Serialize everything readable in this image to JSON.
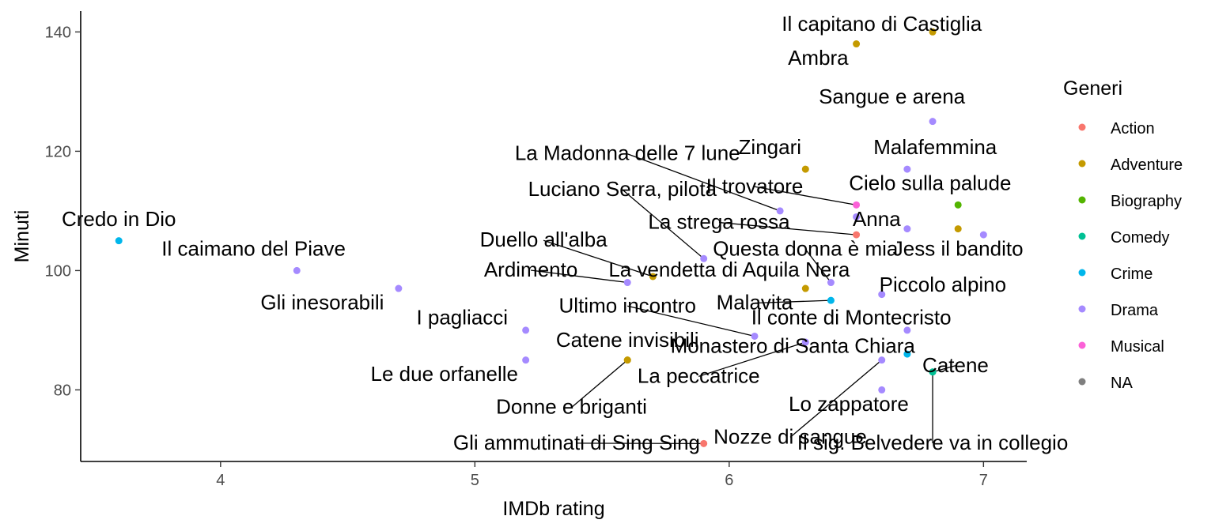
{
  "chart_data": {
    "type": "scatter",
    "xlabel": "IMDb rating",
    "ylabel": "Minuti",
    "xlim": [
      3.45,
      7.17
    ],
    "ylim": [
      68,
      143.5
    ],
    "x_ticks": [
      4,
      5,
      6,
      7
    ],
    "y_ticks": [
      80,
      100,
      120,
      140
    ],
    "grid": false,
    "legend": {
      "title": "Generi",
      "position": "right",
      "entries": [
        {
          "name": "Action",
          "color": "#F8766D"
        },
        {
          "name": "Adventure",
          "color": "#C49A00"
        },
        {
          "name": "Biography",
          "color": "#53B400"
        },
        {
          "name": "Comedy",
          "color": "#00C094"
        },
        {
          "name": "Crime",
          "color": "#00B6EB"
        },
        {
          "name": "Drama",
          "color": "#A58AFF"
        },
        {
          "name": "Musical",
          "color": "#FB61D7"
        },
        {
          "name": "NA",
          "color": "#7F7F7F"
        }
      ]
    },
    "points": [
      {
        "label": "Credo in Dio",
        "x": 3.6,
        "y": 105,
        "genre": "Crime",
        "lx": 3.6,
        "ly": 107.5,
        "leader": false
      },
      {
        "label": "Il caimano del Piave",
        "x": 4.3,
        "y": 100,
        "genre": "Drama",
        "lx": 4.13,
        "ly": 102.5,
        "leader": false
      },
      {
        "label": "Gli inesorabili",
        "x": 4.7,
        "y": 97,
        "genre": "Drama",
        "lx": 4.4,
        "ly": 93.5,
        "leader": false
      },
      {
        "label": "I pagliacci",
        "x": 5.2,
        "y": 90,
        "genre": "Drama",
        "lx": 4.95,
        "ly": 91,
        "leader": false
      },
      {
        "label": "Le due orfanelle",
        "x": 5.2,
        "y": 85,
        "genre": "Drama",
        "lx": 4.88,
        "ly": 81.5,
        "leader": false
      },
      {
        "label": "Catene invisibili",
        "x": 5.6,
        "y": 85,
        "genre": "Adventure",
        "lx": 5.6,
        "ly": 87.2,
        "leader": false
      },
      {
        "label": "Donne e briganti",
        "x": 5.6,
        "y": 85,
        "genre": "Adventure",
        "lx": 5.38,
        "ly": 76,
        "leader": true
      },
      {
        "label": "Duello all'alba",
        "x": 5.7,
        "y": 99,
        "genre": "Adventure",
        "lx": 5.27,
        "ly": 104,
        "leader": true
      },
      {
        "label": "Ardimento",
        "x": 5.6,
        "y": 98,
        "genre": "Drama",
        "lx": 5.22,
        "ly": 99,
        "leader": true
      },
      {
        "label": "La vendetta di Aquila Nera",
        "x": 6.3,
        "y": 97,
        "genre": "Adventure",
        "lx": 6.0,
        "ly": 99,
        "leader": false
      },
      {
        "label": "Ultimo incontro",
        "x": 6.1,
        "y": 89,
        "genre": "Drama",
        "lx": 5.6,
        "ly": 93,
        "leader": true
      },
      {
        "label": "La Madonna delle 7 lune",
        "x": 6.2,
        "y": 110,
        "genre": "Drama",
        "lx": 5.6,
        "ly": 118.5,
        "leader": true
      },
      {
        "label": "Luciano Serra, pilota",
        "x": 5.9,
        "y": 102,
        "genre": "Drama",
        "lx": 5.58,
        "ly": 112.5,
        "leader": true
      },
      {
        "label": "Zingari",
        "x": 6.3,
        "y": 117,
        "genre": "Adventure",
        "lx": 6.16,
        "ly": 119.5,
        "leader": false
      },
      {
        "label": "Il trovatore",
        "x": 6.5,
        "y": 111,
        "genre": "Musical",
        "lx": 6.1,
        "ly": 113,
        "leader": true
      },
      {
        "label": "La strega rossa",
        "x": 6.5,
        "y": 106,
        "genre": "Action",
        "lx": 5.96,
        "ly": 107,
        "leader": true
      },
      {
        "label": "Questa donna è mia",
        "x": 6.4,
        "y": 98,
        "genre": "Drama",
        "lx": 6.3,
        "ly": 102.5,
        "leader": true
      },
      {
        "label": "Malavita",
        "x": 6.4,
        "y": 95,
        "genre": "Crime",
        "lx": 6.1,
        "ly": 93.5,
        "leader": true
      },
      {
        "label": "Monastero di Santa Chiara",
        "x": 6.3,
        "y": 88,
        "genre": "Drama",
        "lx": 6.25,
        "ly": 86.2,
        "leader": false
      },
      {
        "label": "La peccatrice",
        "x": 6.3,
        "y": 88,
        "genre": "Drama",
        "lx": 5.88,
        "ly": 81.2,
        "leader": true
      },
      {
        "label": "Il capitano di Castiglia",
        "x": 6.8,
        "y": 140,
        "genre": "Adventure",
        "lx": 6.6,
        "ly": 140.2,
        "leader": false
      },
      {
        "label": "Ambra",
        "x": 6.5,
        "y": 138,
        "genre": "Adventure",
        "lx": 6.35,
        "ly": 134.5,
        "leader": false
      },
      {
        "label": "Sangue e arena",
        "x": 6.8,
        "y": 125,
        "genre": "Drama",
        "lx": 6.64,
        "ly": 128,
        "leader": false
      },
      {
        "label": "Malafemmina",
        "x": 6.7,
        "y": 117,
        "genre": "Drama",
        "lx": 6.81,
        "ly": 119.5,
        "leader": false
      },
      {
        "label": "Cielo sulla palude",
        "x": 6.9,
        "y": 111,
        "genre": "Biography",
        "lx": 6.79,
        "ly": 113.5,
        "leader": false
      },
      {
        "label": "Anna",
        "x": 6.5,
        "y": 109,
        "genre": "Drama",
        "lx": 6.58,
        "ly": 107.5,
        "leader": false
      },
      {
        "label": "Jess il bandito",
        "x": 6.7,
        "y": 107,
        "genre": "Drama",
        "lx": 6.9,
        "ly": 102.5,
        "leader": false
      },
      {
        "label": "Piccolo alpino",
        "x": 6.6,
        "y": 96,
        "genre": "Drama",
        "lx": 6.84,
        "ly": 96.5,
        "leader": false
      },
      {
        "label": "Il conte di Montecristo",
        "x": 6.7,
        "y": 90,
        "genre": "Drama",
        "lx": 6.48,
        "ly": 91,
        "leader": false
      },
      {
        "label": "Catene",
        "x": 6.8,
        "y": 83,
        "genre": "Comedy",
        "lx": 6.89,
        "ly": 83,
        "leader": true
      },
      {
        "label": "Lo zappatore",
        "x": 6.6,
        "y": 80,
        "genre": "Drama",
        "lx": 6.47,
        "ly": 76.5,
        "leader": false
      },
      {
        "label": "Nozze di sangue",
        "x": 6.6,
        "y": 85,
        "genre": "Drama",
        "lx": 6.24,
        "ly": 71,
        "leader": true
      },
      {
        "label": "Gli ammutinati di Sing Sing",
        "x": 5.9,
        "y": 71,
        "genre": "Action",
        "lx": 5.4,
        "ly": 70,
        "leader": true
      },
      {
        "label": "Il sig. Belvedere va in collegio",
        "x": 6.8,
        "y": 83,
        "genre": "Comedy",
        "lx": 6.8,
        "ly": 70,
        "leader": true
      },
      {
        "label": "",
        "x": 6.9,
        "y": 107,
        "genre": "Adventure"
      },
      {
        "label": "",
        "x": 7.0,
        "y": 106,
        "genre": "Drama"
      },
      {
        "label": "",
        "x": 6.7,
        "y": 86,
        "genre": "Crime"
      }
    ]
  }
}
